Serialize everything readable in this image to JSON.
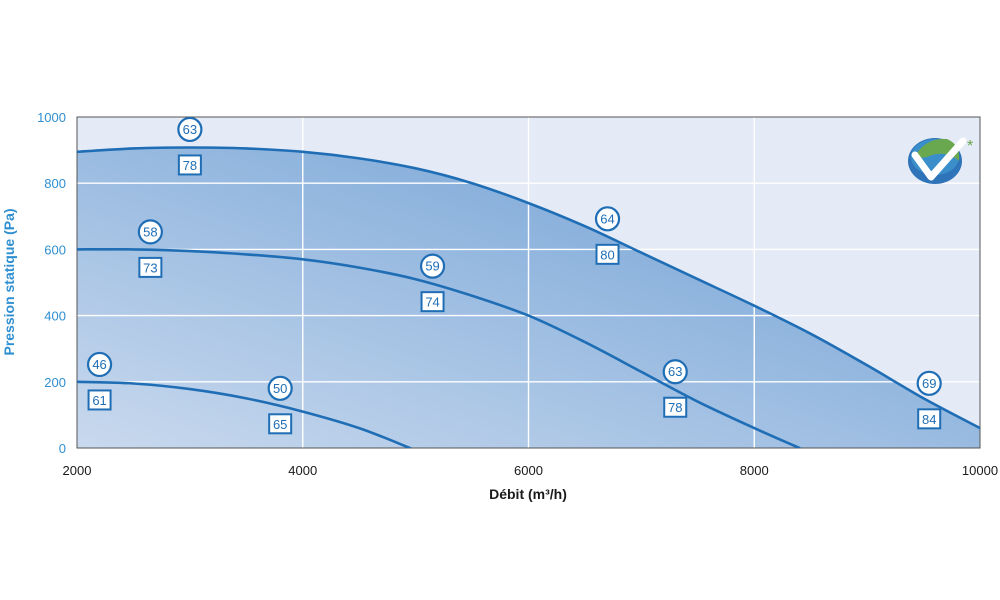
{
  "chart_data": {
    "type": "line",
    "title": "",
    "xlabel": "Débit (m³/h)",
    "ylabel": "Pression statique (Pa)",
    "xlim": [
      2000,
      10000
    ],
    "ylim": [
      0,
      1000
    ],
    "x_ticks": [
      "2000",
      "4000",
      "6000",
      "8000",
      "10000"
    ],
    "y_ticks": [
      "0",
      "200",
      "400",
      "600",
      "800",
      "1000"
    ],
    "grid": true,
    "colors": {
      "curve": "#1f6eb5",
      "label": "#1f6eb5",
      "ylabel": "#2f8fd0",
      "plot_bg": "#e4eaf6",
      "fill_light": "#c9d9ee",
      "fill_dark": "#6a9dd3"
    },
    "series": [
      {
        "x": [
          2000,
          2500,
          3000,
          3500,
          4000,
          4500,
          5000,
          5500,
          6000,
          6500,
          7000,
          7500,
          8000,
          8500,
          9000,
          9500,
          10000
        ],
        "y": [
          895,
          905,
          908,
          905,
          895,
          875,
          845,
          800,
          740,
          670,
          590,
          510,
          430,
          345,
          250,
          150,
          60
        ],
        "labels": [
          {
            "x": 3000,
            "circle": "63",
            "box": "78"
          },
          {
            "x": 6700,
            "circle": "64",
            "box": "80"
          },
          {
            "x": 9550,
            "circle": "69",
            "box": "84"
          }
        ]
      },
      {
        "x": [
          2000,
          2500,
          3000,
          3500,
          4000,
          4500,
          5000,
          5500,
          6000,
          6500,
          7000,
          7500,
          8000,
          8400
        ],
        "y": [
          600,
          600,
          595,
          585,
          570,
          545,
          510,
          460,
          400,
          320,
          230,
          140,
          60,
          0
        ],
        "labels": [
          {
            "x": 2650,
            "circle": "58",
            "box": "73"
          },
          {
            "x": 5150,
            "circle": "59",
            "box": "74"
          },
          {
            "x": 7300,
            "circle": "63",
            "box": "78"
          }
        ]
      },
      {
        "x": [
          2000,
          2500,
          3000,
          3500,
          4000,
          4500,
          4950
        ],
        "y": [
          200,
          195,
          178,
          150,
          110,
          60,
          0
        ],
        "labels": [
          {
            "x": 2200,
            "circle": "46",
            "box": "61"
          },
          {
            "x": 3800,
            "circle": "50",
            "box": "65"
          }
        ]
      }
    ]
  },
  "logo": {
    "icon": "checkmark-globe-icon",
    "mark": "*"
  }
}
